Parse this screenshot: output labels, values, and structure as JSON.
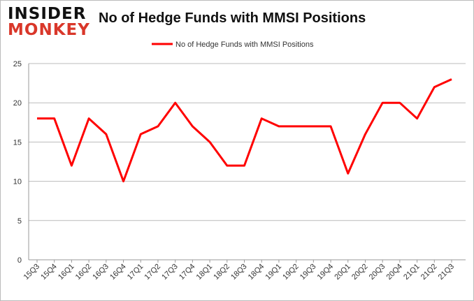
{
  "logo": {
    "line1": "INSIDER",
    "line2": "MONKEY"
  },
  "chart_data": {
    "type": "line",
    "title": "No of Hedge Funds with MMSI Positions",
    "xlabel": "",
    "ylabel": "",
    "categories": [
      "15Q3",
      "15Q4",
      "16Q1",
      "16Q2",
      "16Q3",
      "16Q4",
      "17Q1",
      "17Q2",
      "17Q3",
      "17Q4",
      "18Q1",
      "18Q2",
      "18Q3",
      "18Q4",
      "19Q1",
      "19Q2",
      "19Q3",
      "19Q4",
      "20Q1",
      "20Q2",
      "20Q3",
      "20Q4",
      "21Q1",
      "21Q2",
      "21Q3"
    ],
    "series": [
      {
        "name": "No of Hedge Funds with MMSI Positions",
        "color": "#ff0000",
        "values": [
          18,
          18,
          12,
          18,
          16,
          10,
          16,
          17,
          20,
          17,
          15,
          12,
          12,
          18,
          17,
          17,
          17,
          17,
          11,
          16,
          20,
          20,
          18,
          22,
          23
        ]
      }
    ],
    "ylim": [
      0,
      25
    ],
    "yticks": [
      0,
      5,
      10,
      15,
      20,
      25
    ],
    "grid": true,
    "legend": "top-center"
  }
}
